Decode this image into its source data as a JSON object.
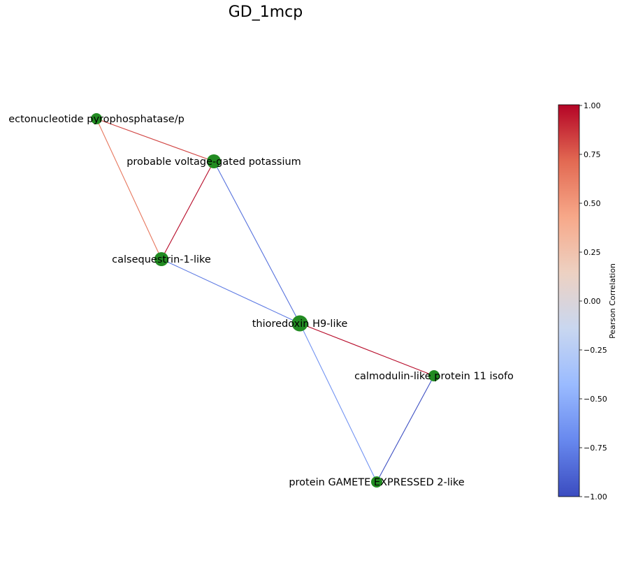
{
  "title": "GD_1mcp",
  "chart_data": {
    "type": "network",
    "nodes": [
      {
        "id": "ectonucleotide",
        "label": "ectonucleotide pyrophosphatase/p",
        "color": "#228b22"
      },
      {
        "id": "voltage",
        "label": "probable voltage-gated potassium",
        "color": "#228b22"
      },
      {
        "id": "calsequestrin",
        "label": "calsequestrin-1-like",
        "color": "#228b22"
      },
      {
        "id": "thioredoxin",
        "label": "thioredoxin H9-like",
        "color": "#228b22"
      },
      {
        "id": "calmodulin",
        "label": "calmodulin-like protein 11 isofo",
        "color": "#228b22"
      },
      {
        "id": "gamete",
        "label": "protein GAMETE EXPRESSED 2-like",
        "color": "#228b22"
      }
    ],
    "edges": [
      {
        "source": "ectonucleotide",
        "target": "voltage",
        "correlation": 0.82
      },
      {
        "source": "ectonucleotide",
        "target": "calsequestrin",
        "correlation": 0.65
      },
      {
        "source": "voltage",
        "target": "calsequestrin",
        "correlation": 0.98
      },
      {
        "source": "voltage",
        "target": "thioredoxin",
        "correlation": -0.82
      },
      {
        "source": "calsequestrin",
        "target": "thioredoxin",
        "correlation": -0.78
      },
      {
        "source": "thioredoxin",
        "target": "calmodulin",
        "correlation": 0.98
      },
      {
        "source": "thioredoxin",
        "target": "gamete",
        "correlation": -0.65
      },
      {
        "source": "calmodulin",
        "target": "gamete",
        "correlation": -0.98
      }
    ],
    "colorbar": {
      "label": "Pearson Correlation",
      "min": -1.0,
      "max": 1.0,
      "ticks": [
        "1.00",
        "0.75",
        "0.50",
        "0.25",
        "0.00",
        "−0.25",
        "−0.50",
        "−0.75",
        "−1.00"
      ],
      "colormap": "coolwarm",
      "stops": [
        "#3b4cc0",
        "#6788ee",
        "#9abbff",
        "#c9d7f0",
        "#edd1c2",
        "#f7a889",
        "#e26952",
        "#b40426"
      ]
    }
  }
}
